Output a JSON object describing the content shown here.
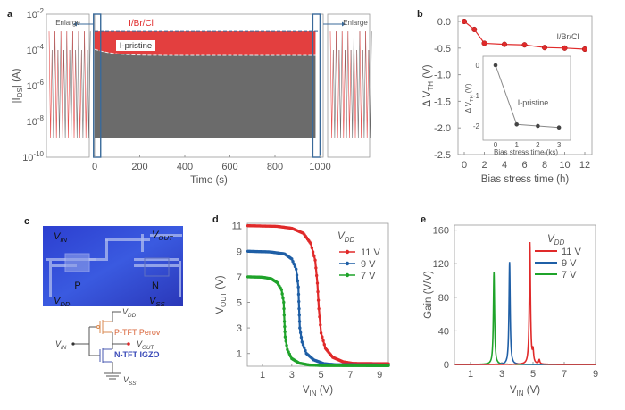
{
  "panels": {
    "a": "a",
    "b": "b",
    "c": "c",
    "d": "d",
    "e": "e"
  },
  "colors": {
    "red": "#e02a2a",
    "blue": "#1f5fa6",
    "green": "#1fa32a",
    "gray": "#6b6b6b",
    "box": "#3a6a9a",
    "pristine": "#666666"
  },
  "chart_data": [
    {
      "id": "a",
      "type": "line",
      "xlabel": "Time (s)",
      "ylabel": {
        "main": "|I",
        "sub": "DS",
        "tail": "| (A)"
      },
      "xlim": [
        0,
        1000
      ],
      "ylim": [
        1e-10,
        0.01
      ],
      "yscale": "log",
      "xticks": [
        "0",
        "200",
        "400",
        "600",
        "800",
        "1000"
      ],
      "yticks": [
        {
          "base": "10",
          "exp": "-2"
        },
        {
          "base": "10",
          "exp": "-4"
        },
        {
          "base": "10",
          "exp": "-6"
        },
        {
          "base": "10",
          "exp": "-8"
        },
        {
          "base": "10",
          "exp": "-10"
        }
      ],
      "annotations": {
        "enlarge_left": "Enlarge",
        "enlarge_right": "Enlarge"
      },
      "series": [
        {
          "name": "I/Br/Cl",
          "on_current": 0.0011,
          "off_current": 1.2e-09
        },
        {
          "name": "I-pristine",
          "on_current_start": 0.00011,
          "on_current_end": 5e-05,
          "off_current": 1.2e-09
        }
      ]
    },
    {
      "id": "b",
      "type": "line",
      "xlabel": "Bias stress time (h)",
      "ylabel": {
        "main": "Δ V",
        "sub": "TH",
        "tail": " (V)"
      },
      "xlim": [
        -0.7,
        13
      ],
      "ylim": [
        -2.5,
        0.1
      ],
      "xticks": [
        "0",
        "2",
        "4",
        "6",
        "8",
        "10",
        "12"
      ],
      "yticks": [
        "0.0",
        "-0.5",
        "-1.0",
        "-1.5",
        "-2.0",
        "-2.5"
      ],
      "series": [
        {
          "name": "I/Br/Cl",
          "x": [
            0,
            1,
            2,
            4,
            6,
            8,
            10,
            12
          ],
          "y": [
            0,
            -0.15,
            -0.41,
            -0.43,
            -0.44,
            -0.49,
            -0.5,
            -0.52
          ]
        }
      ],
      "inset": {
        "type": "line",
        "xlabel": "Bias stress time (ks)",
        "ylabel": {
          "main": "Δ V",
          "sub": "TH",
          "tail": " (V)"
        },
        "xlim": [
          -0.4,
          3.4
        ],
        "ylim": [
          -2.45,
          0.3
        ],
        "xticks": [
          "0",
          "1",
          "2",
          "3"
        ],
        "yticks": [
          "0",
          "-1",
          "-2"
        ],
        "series": [
          {
            "name": "I-pristine",
            "x": [
              0,
              1,
              2,
              3
            ],
            "y": [
              0,
              -1.95,
              -2.0,
              -2.05
            ]
          }
        ]
      }
    },
    {
      "id": "d",
      "type": "line",
      "xlabel": {
        "main": "V",
        "sub": "IN",
        "tail": " (V)"
      },
      "ylabel": {
        "main": "V",
        "sub": "OUT",
        "tail": " (V)"
      },
      "xlim": [
        0,
        9.6
      ],
      "ylim": [
        0,
        11
      ],
      "xticks": [
        "1",
        "3",
        "5",
        "7",
        "9"
      ],
      "yticks": [
        "1",
        "3",
        "5",
        "7",
        "9",
        "11"
      ],
      "legend_title": {
        "main": "V",
        "sub": "DD"
      },
      "legend_position": "top-right",
      "series": [
        {
          "name": "11 V",
          "x": [
            0,
            2,
            3,
            3.8,
            4.3,
            4.6,
            4.75,
            4.85,
            5.0,
            5.3,
            5.8,
            6.5,
            7.2,
            9.6
          ],
          "y": [
            11,
            10.95,
            10.8,
            10.4,
            9.6,
            8.3,
            6.5,
            4.5,
            2.6,
            1.4,
            0.7,
            0.35,
            0.22,
            0.2
          ]
        },
        {
          "name": "9 V",
          "x": [
            0,
            1.5,
            2.5,
            3.0,
            3.3,
            3.45,
            3.5,
            3.55,
            3.7,
            4.0,
            4.5,
            5.2,
            6,
            9.6
          ],
          "y": [
            9,
            8.95,
            8.8,
            8.4,
            7.6,
            6.2,
            4.5,
            3.0,
            1.9,
            1.0,
            0.5,
            0.2,
            0.12,
            0.1
          ]
        },
        {
          "name": "7 V",
          "x": [
            0,
            1,
            1.6,
            2.0,
            2.3,
            2.45,
            2.5,
            2.55,
            2.7,
            3.0,
            3.5,
            4.2,
            5,
            9.6
          ],
          "y": [
            7,
            6.97,
            6.85,
            6.55,
            6.0,
            5.0,
            3.5,
            2.3,
            1.3,
            0.6,
            0.25,
            0.1,
            0.06,
            0.05
          ]
        }
      ]
    },
    {
      "id": "e",
      "type": "line",
      "xlabel": {
        "main": "V",
        "sub": "IN",
        "tail": " (V)"
      },
      "ylabel": "Gain (V/V)",
      "xlim": [
        0,
        9
      ],
      "ylim": [
        0,
        165
      ],
      "xticks": [
        "1",
        "3",
        "5",
        "7",
        "9"
      ],
      "yticks": [
        "0",
        "40",
        "80",
        "120",
        "160"
      ],
      "legend_title": {
        "main": "V",
        "sub": "DD"
      },
      "legend_position": "top-right",
      "series": [
        {
          "name": "11 V",
          "peaks": [
            {
              "x": 4.8,
              "gain": 145
            },
            {
              "x": 5.0,
              "gain": 14
            },
            {
              "x": 5.4,
              "gain": 5
            }
          ]
        },
        {
          "name": "9 V",
          "peaks": [
            {
              "x": 3.5,
              "gain": 122
            }
          ]
        },
        {
          "name": "7 V",
          "peaks": [
            {
              "x": 2.5,
              "gain": 110
            }
          ]
        }
      ]
    }
  ],
  "panel_c": {
    "photo_labels": {
      "vin": {
        "main": "V",
        "sub": "IN"
      },
      "vout": {
        "main": "V",
        "sub": "OUT"
      },
      "vdd": {
        "main": "V",
        "sub": "DD"
      },
      "vss": {
        "main": "V",
        "sub": "SS"
      },
      "p": "P",
      "n": "N"
    },
    "circuit": {
      "vdd": {
        "main": "V",
        "sub": "DD"
      },
      "vin": {
        "main": "V",
        "sub": "IN"
      },
      "vout": {
        "main": "V",
        "sub": "OUT"
      },
      "vss": {
        "main": "V",
        "sub": "SS"
      },
      "ptft": "P-TFT Perov",
      "ntft": "N-TFT IGZO"
    }
  }
}
